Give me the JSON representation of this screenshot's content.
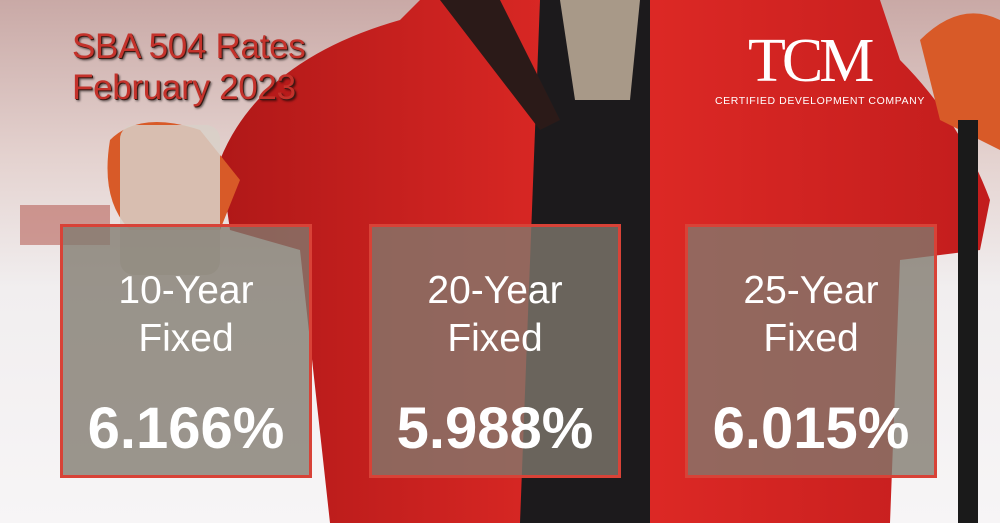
{
  "header": {
    "title": "SBA 504 Rates",
    "subtitle": "February 2023"
  },
  "logo": {
    "name": "TCM",
    "tagline": "CERTIFIED DEVELOPMENT COMPANY"
  },
  "cards": [
    {
      "term": "10-Year",
      "kind": "Fixed",
      "rate": "6.166%"
    },
    {
      "term": "20-Year",
      "kind": "Fixed",
      "rate": "5.988%"
    },
    {
      "term": "25-Year",
      "kind": "Fixed",
      "rate": "6.015%"
    }
  ]
}
